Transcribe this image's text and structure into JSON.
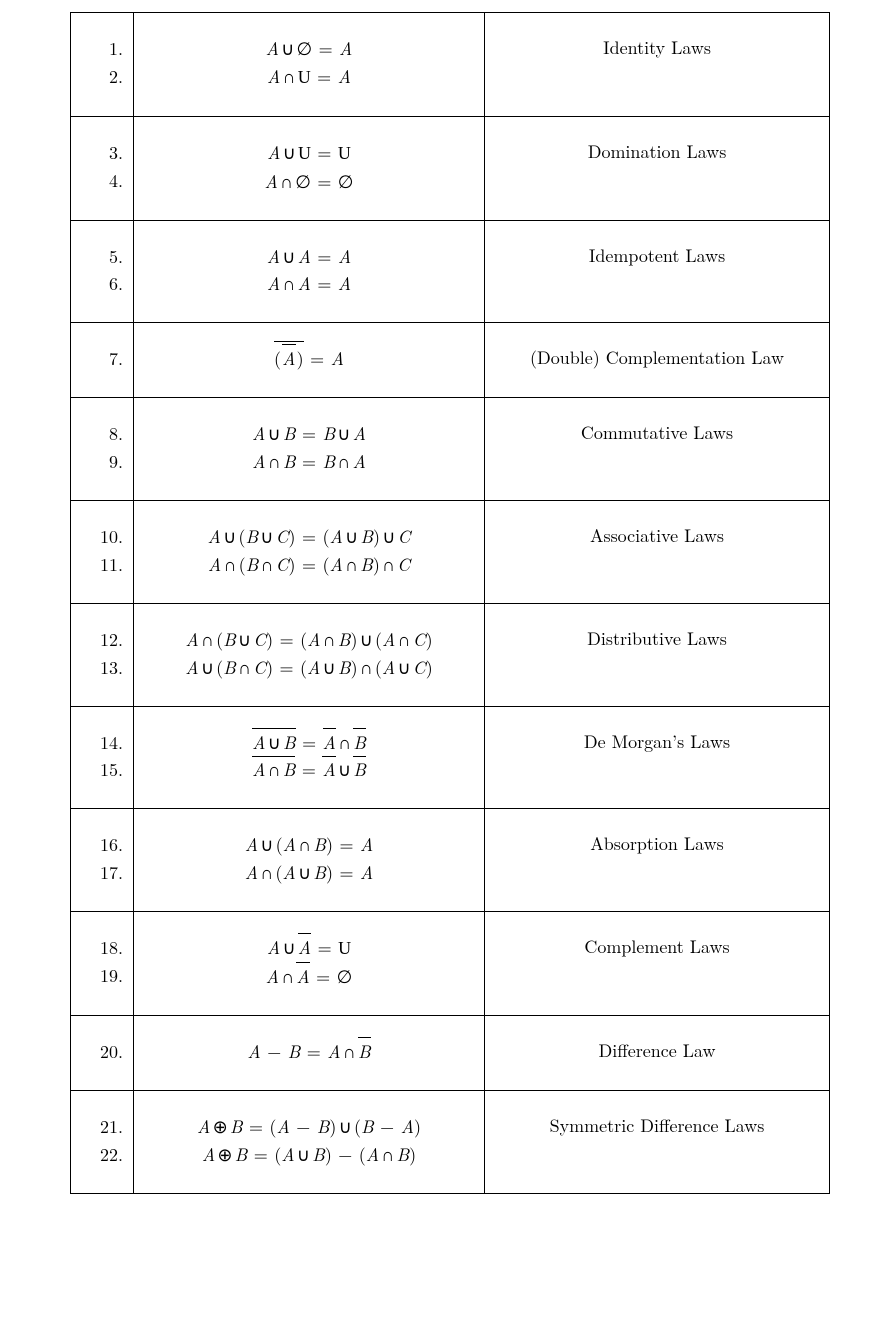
{
  "table": {
    "border_color": "#000000",
    "background_color": "#ffffff",
    "text_color": "#000000",
    "font_family": "Computer Modern / Times-like serif",
    "base_fontsize_pt": 14,
    "columns": [
      "number",
      "equation",
      "law_name"
    ],
    "column_align": [
      "right",
      "center",
      "center"
    ],
    "rows": [
      {
        "numbers": [
          "1.",
          "2."
        ],
        "equations_tex": [
          "A \\cup \\emptyset = A",
          "A \\cap \\mathcal{U} = A"
        ],
        "equations_html": [
          "<span class='it'>A</span><span class='sp'></span><span class='up'>∪</span><span class='sp'></span><span class='up'>∅</span> <span class='up'>=</span> <span class='it'>A</span>",
          "<span class='it'>A</span><span class='sp'></span><span class='up'>∩</span><span class='sp'></span><span class='cal'>U</span> <span class='up'>=</span> <span class='it'>A</span>"
        ],
        "name": "Identity Laws"
      },
      {
        "numbers": [
          "3.",
          "4."
        ],
        "equations_tex": [
          "A \\cup \\mathcal{U} = \\mathcal{U}",
          "A \\cap \\emptyset = \\emptyset"
        ],
        "equations_html": [
          "<span class='it'>A</span><span class='sp'></span><span class='up'>∪</span><span class='sp'></span><span class='cal'>U</span> <span class='up'>=</span> <span class='cal'>U</span>",
          "<span class='it'>A</span><span class='sp'></span><span class='up'>∩</span><span class='sp'></span><span class='up'>∅</span> <span class='up'>=</span> <span class='up'>∅</span>"
        ],
        "name": "Domination Laws"
      },
      {
        "numbers": [
          "5.",
          "6."
        ],
        "equations_tex": [
          "A \\cup A = A",
          "A \\cap A = A"
        ],
        "equations_html": [
          "<span class='it'>A</span><span class='sp'></span><span class='up'>∪</span><span class='sp'></span><span class='it'>A</span> <span class='up'>=</span> <span class='it'>A</span>",
          "<span class='it'>A</span><span class='sp'></span><span class='up'>∩</span><span class='sp'></span><span class='it'>A</span> <span class='up'>=</span> <span class='it'>A</span>"
        ],
        "name": "Idempotent Laws"
      },
      {
        "numbers": [
          "7."
        ],
        "equations_tex": [
          "\\overline{(\\,\\overline{A}\\,)} = A"
        ],
        "equations_html": [
          "<span class='overline overline2'><span class='up'>(&#8202;</span><span class='overline'><span class='it'>A</span></span><span class='up'>&#8202;)</span></span> <span class='up'>=</span> <span class='it'>A</span>"
        ],
        "name": "(Double) Complementation Law"
      },
      {
        "numbers": [
          "8.",
          "9."
        ],
        "equations_tex": [
          "A \\cup B = B \\cup A",
          "A \\cap B = B \\cap A"
        ],
        "equations_html": [
          "<span class='it'>A</span><span class='sp'></span><span class='up'>∪</span><span class='sp'></span><span class='it'>B</span> <span class='up'>=</span> <span class='it'>B</span><span class='sp'></span><span class='up'>∪</span><span class='sp'></span><span class='it'>A</span>",
          "<span class='it'>A</span><span class='sp'></span><span class='up'>∩</span><span class='sp'></span><span class='it'>B</span> <span class='up'>=</span> <span class='it'>B</span><span class='sp'></span><span class='up'>∩</span><span class='sp'></span><span class='it'>A</span>"
        ],
        "name": "Commutative Laws"
      },
      {
        "numbers": [
          "10.",
          "11."
        ],
        "equations_tex": [
          "A \\cup (B \\cup C) = (A \\cup B) \\cup C",
          "A \\cap (B \\cap C) = (A \\cap B) \\cap C"
        ],
        "equations_html": [
          "<span class='it'>A</span><span class='sp'></span><span class='up'>∪</span><span class='sp'></span><span class='up'>(</span><span class='it'>B</span><span class='sp'></span><span class='up'>∪</span><span class='sp'></span><span class='it'>C</span><span class='up'>)</span> <span class='up'>=</span> <span class='up'>(</span><span class='it'>A</span><span class='sp'></span><span class='up'>∪</span><span class='sp'></span><span class='it'>B</span><span class='up'>)</span><span class='sp'></span><span class='up'>∪</span><span class='sp'></span><span class='it'>C</span>",
          "<span class='it'>A</span><span class='sp'></span><span class='up'>∩</span><span class='sp'></span><span class='up'>(</span><span class='it'>B</span><span class='sp'></span><span class='up'>∩</span><span class='sp'></span><span class='it'>C</span><span class='up'>)</span> <span class='up'>=</span> <span class='up'>(</span><span class='it'>A</span><span class='sp'></span><span class='up'>∩</span><span class='sp'></span><span class='it'>B</span><span class='up'>)</span><span class='sp'></span><span class='up'>∩</span><span class='sp'></span><span class='it'>C</span>"
        ],
        "name": "Associative Laws"
      },
      {
        "numbers": [
          "12.",
          "13."
        ],
        "equations_tex": [
          "A \\cap (B \\cup C) = (A \\cap B) \\cup (A \\cap C)",
          "A \\cup (B \\cap C) = (A \\cup B) \\cap (A \\cup C)"
        ],
        "equations_html": [
          "<span class='it'>A</span><span class='sp'></span><span class='up'>∩</span><span class='sp'></span><span class='up'>(</span><span class='it'>B</span><span class='sp'></span><span class='up'>∪</span><span class='sp'></span><span class='it'>C</span><span class='up'>)</span> <span class='up'>=</span> <span class='up'>(</span><span class='it'>A</span><span class='sp'></span><span class='up'>∩</span><span class='sp'></span><span class='it'>B</span><span class='up'>)</span><span class='sp'></span><span class='up'>∪</span><span class='sp'></span><span class='up'>(</span><span class='it'>A</span><span class='sp'></span><span class='up'>∩</span><span class='sp'></span><span class='it'>C</span><span class='up'>)</span>",
          "<span class='it'>A</span><span class='sp'></span><span class='up'>∪</span><span class='sp'></span><span class='up'>(</span><span class='it'>B</span><span class='sp'></span><span class='up'>∩</span><span class='sp'></span><span class='it'>C</span><span class='up'>)</span> <span class='up'>=</span> <span class='up'>(</span><span class='it'>A</span><span class='sp'></span><span class='up'>∪</span><span class='sp'></span><span class='it'>B</span><span class='up'>)</span><span class='sp'></span><span class='up'>∩</span><span class='sp'></span><span class='up'>(</span><span class='it'>A</span><span class='sp'></span><span class='up'>∪</span><span class='sp'></span><span class='it'>C</span><span class='up'>)</span>"
        ],
        "name": "Distributive Laws"
      },
      {
        "numbers": [
          "14.",
          "15."
        ],
        "equations_tex": [
          "\\overline{A \\cup B} = \\overline{A} \\cap \\overline{B}",
          "\\overline{A \\cap B} = \\overline{A} \\cup \\overline{B}"
        ],
        "equations_html": [
          "<span class='overline'><span class='it'>A</span><span class='sp'></span><span class='up'>∪</span><span class='sp'></span><span class='it'>B</span></span> <span class='up'>=</span> <span class='overline'><span class='it'>A</span></span><span class='sp'></span><span class='up'>∩</span><span class='sp'></span><span class='overline'><span class='it'>B</span></span>",
          "<span class='overline'><span class='it'>A</span><span class='sp'></span><span class='up'>∩</span><span class='sp'></span><span class='it'>B</span></span> <span class='up'>=</span> <span class='overline'><span class='it'>A</span></span><span class='sp'></span><span class='up'>∪</span><span class='sp'></span><span class='overline'><span class='it'>B</span></span>"
        ],
        "name": "De Morgan’s Laws"
      },
      {
        "numbers": [
          "16.",
          "17."
        ],
        "equations_tex": [
          "A \\cup (A \\cap B) = A",
          "A \\cap (A \\cup B) = A"
        ],
        "equations_html": [
          "<span class='it'>A</span><span class='sp'></span><span class='up'>∪</span><span class='sp'></span><span class='up'>(</span><span class='it'>A</span><span class='sp'></span><span class='up'>∩</span><span class='sp'></span><span class='it'>B</span><span class='up'>)</span> <span class='up'>=</span> <span class='it'>A</span>",
          "<span class='it'>A</span><span class='sp'></span><span class='up'>∩</span><span class='sp'></span><span class='up'>(</span><span class='it'>A</span><span class='sp'></span><span class='up'>∪</span><span class='sp'></span><span class='it'>B</span><span class='up'>)</span> <span class='up'>=</span> <span class='it'>A</span>"
        ],
        "name": "Absorption Laws"
      },
      {
        "numbers": [
          "18.",
          "19."
        ],
        "equations_tex": [
          "A \\cup \\overline{A} = \\mathcal{U}",
          "A \\cap \\overline{A} = \\emptyset"
        ],
        "equations_html": [
          "<span class='it'>A</span><span class='sp'></span><span class='up'>∪</span><span class='sp'></span><span class='overline'><span class='it'>A</span></span> <span class='up'>=</span> <span class='cal'>U</span>",
          "<span class='it'>A</span><span class='sp'></span><span class='up'>∩</span><span class='sp'></span><span class='overline'><span class='it'>A</span></span> <span class='up'>=</span> <span class='up'>∅</span>"
        ],
        "name": "Complement Laws"
      },
      {
        "numbers": [
          "20."
        ],
        "equations_tex": [
          "A - B = A \\cap \\overline{B}"
        ],
        "equations_html": [
          "<span class='it'>A</span> <span class='up'>−</span> <span class='it'>B</span> <span class='up'>=</span> <span class='it'>A</span><span class='sp'></span><span class='up'>∩</span><span class='sp'></span><span class='overline'><span class='it'>B</span></span>"
        ],
        "name": "Difference Law"
      },
      {
        "numbers": [
          "21.",
          "22."
        ],
        "equations_tex": [
          "A \\oplus B = (A - B) \\cup (B - A)",
          "A \\oplus B = (A \\cup B) - (A \\cap B)"
        ],
        "equations_html": [
          "<span class='it'>A</span><span class='sp'></span><span class='up'>⊕</span><span class='sp'></span><span class='it'>B</span> <span class='up'>=</span> <span class='up'>(</span><span class='it'>A</span> <span class='up'>−</span> <span class='it'>B</span><span class='up'>)</span><span class='sp'></span><span class='up'>∪</span><span class='sp'></span><span class='up'>(</span><span class='it'>B</span> <span class='up'>−</span> <span class='it'>A</span><span class='up'>)</span>",
          "<span class='it'>A</span><span class='sp'></span><span class='up'>⊕</span><span class='sp'></span><span class='it'>B</span> <span class='up'>=</span> <span class='up'>(</span><span class='it'>A</span><span class='sp'></span><span class='up'>∪</span><span class='sp'></span><span class='it'>B</span><span class='up'>)</span> <span class='up'>−</span> <span class='up'>(</span><span class='it'>A</span><span class='sp'></span><span class='up'>∩</span><span class='sp'></span><span class='it'>B</span><span class='up'>)</span>"
        ],
        "name": "Symmetric Difference Laws"
      }
    ]
  }
}
